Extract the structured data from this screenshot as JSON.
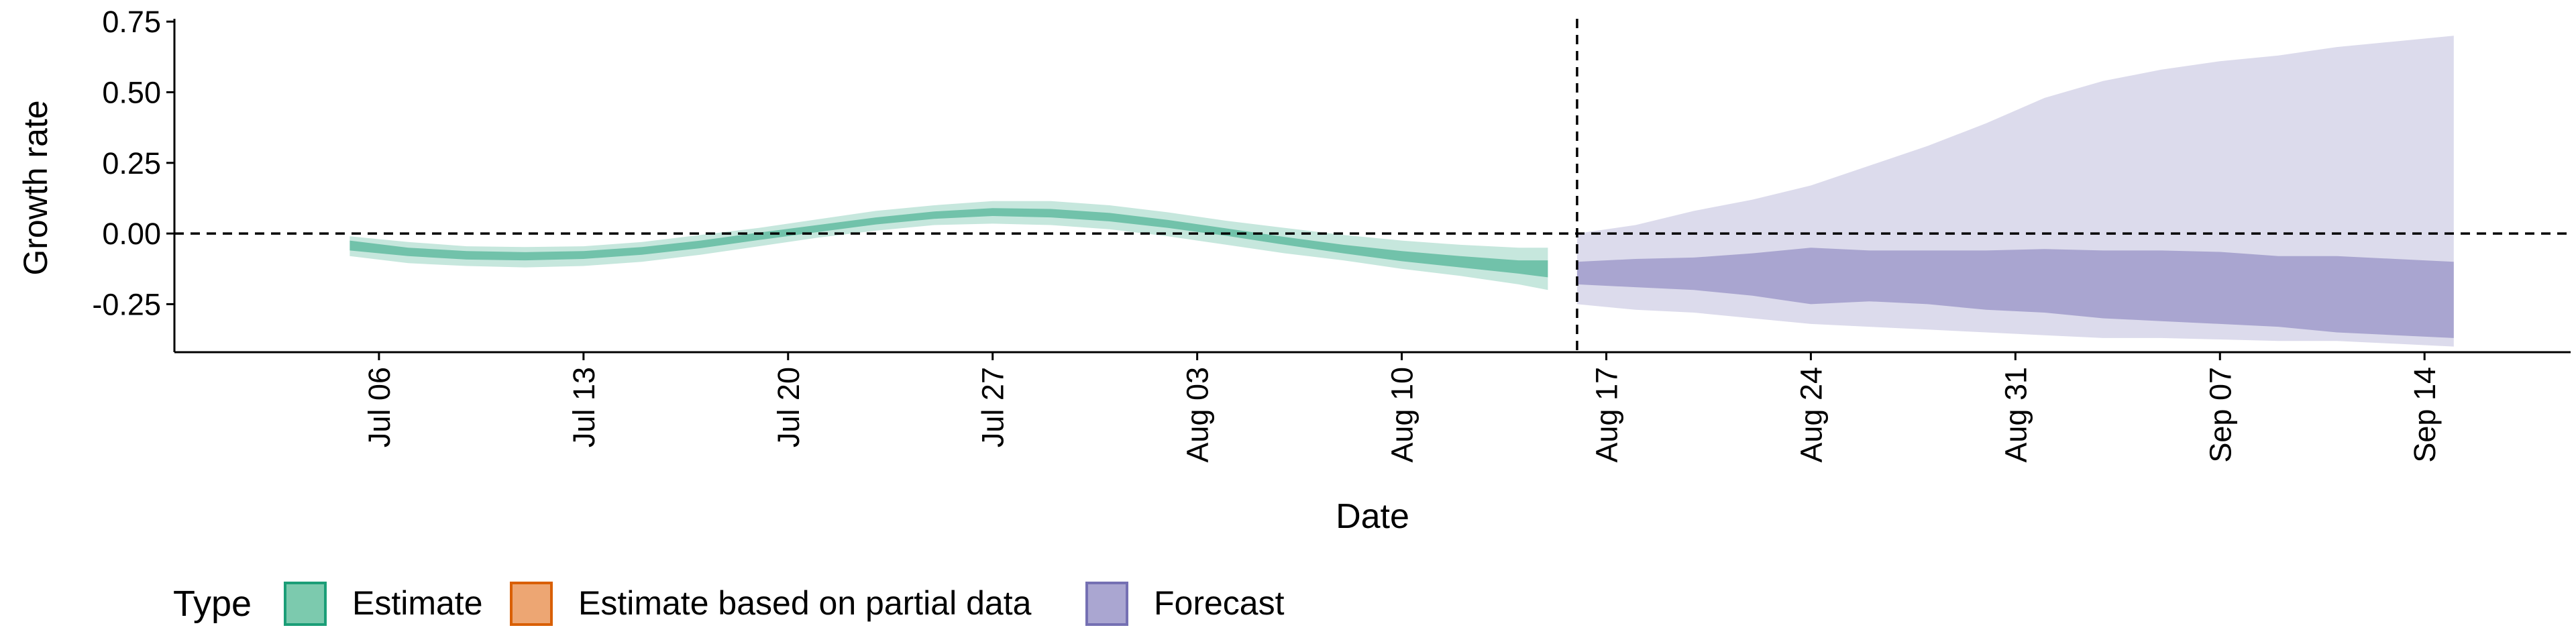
{
  "chart_data": {
    "type": "area",
    "title": "",
    "xlabel": "Date",
    "ylabel": "Growth rate",
    "ylim": [
      -0.42,
      0.76
    ],
    "y_ticks": [
      -0.25,
      0.0,
      0.25,
      0.5,
      0.75
    ],
    "y_tick_labels": [
      "-0.25",
      "0.00",
      "0.25",
      "0.50",
      "0.75"
    ],
    "x_ticks": [
      "2020-07-06",
      "2020-07-13",
      "2020-07-20",
      "2020-07-27",
      "2020-08-03",
      "2020-08-10",
      "2020-08-17",
      "2020-08-24",
      "2020-08-31",
      "2020-09-07",
      "2020-09-14"
    ],
    "x_tick_labels": [
      "Jul 06",
      "Jul 13",
      "Jul 20",
      "Jul 27",
      "Aug 03",
      "Aug 10",
      "Aug 17",
      "Aug 24",
      "Aug 31",
      "Sep 07",
      "Sep 14"
    ],
    "xlim": [
      "2020-06-29",
      "2020-09-19"
    ],
    "grid": false,
    "reference_lines": {
      "horizontal_y": 0.0,
      "vertical_date": "2020-08-16",
      "style": "dashed"
    },
    "legend": {
      "title": "Type",
      "position": "bottom-left",
      "entries": [
        {
          "label": "Estimate",
          "fill": "#7ccaae",
          "stroke": "#1b9e77"
        },
        {
          "label": "Estimate based on partial data",
          "fill": "#eda673",
          "stroke": "#d95f02"
        },
        {
          "label": "Forecast",
          "fill": "#aaa6d1",
          "stroke": "#7570b3"
        }
      ]
    },
    "series": [
      {
        "name": "Estimate",
        "color": "#1b9e77",
        "x": [
          "2020-07-05",
          "2020-07-07",
          "2020-07-09",
          "2020-07-11",
          "2020-07-13",
          "2020-07-15",
          "2020-07-17",
          "2020-07-19",
          "2020-07-21",
          "2020-07-23",
          "2020-07-25",
          "2020-07-27",
          "2020-07-29",
          "2020-07-31",
          "2020-08-02",
          "2020-08-04",
          "2020-08-06",
          "2020-08-08",
          "2020-08-10",
          "2020-08-12",
          "2020-08-14",
          "2020-08-15"
        ],
        "outer_lower": [
          -0.08,
          -0.105,
          -0.115,
          -0.12,
          -0.115,
          -0.1,
          -0.075,
          -0.045,
          -0.015,
          0.01,
          0.03,
          0.035,
          0.03,
          0.015,
          -0.01,
          -0.04,
          -0.07,
          -0.095,
          -0.125,
          -0.15,
          -0.18,
          -0.2
        ],
        "inner_lower": [
          -0.06,
          -0.08,
          -0.092,
          -0.095,
          -0.09,
          -0.075,
          -0.052,
          -0.023,
          0.005,
          0.032,
          0.052,
          0.062,
          0.057,
          0.043,
          0.02,
          -0.008,
          -0.04,
          -0.07,
          -0.098,
          -0.12,
          -0.142,
          -0.155
        ],
        "inner_upper": [
          -0.025,
          -0.05,
          -0.062,
          -0.066,
          -0.062,
          -0.048,
          -0.025,
          0.003,
          0.03,
          0.057,
          0.078,
          0.09,
          0.087,
          0.073,
          0.048,
          0.018,
          -0.012,
          -0.04,
          -0.062,
          -0.08,
          -0.095,
          -0.095
        ],
        "outer_upper": [
          -0.01,
          -0.03,
          -0.045,
          -0.048,
          -0.045,
          -0.03,
          -0.005,
          0.02,
          0.05,
          0.08,
          0.1,
          0.115,
          0.115,
          0.1,
          0.075,
          0.045,
          0.02,
          -0.005,
          -0.025,
          -0.04,
          -0.05,
          -0.05
        ]
      },
      {
        "name": "Forecast",
        "color": "#7570b3",
        "x": [
          "2020-08-16",
          "2020-08-18",
          "2020-08-20",
          "2020-08-22",
          "2020-08-24",
          "2020-08-26",
          "2020-08-28",
          "2020-08-30",
          "2020-09-01",
          "2020-09-03",
          "2020-09-05",
          "2020-09-07",
          "2020-09-09",
          "2020-09-11",
          "2020-09-13",
          "2020-09-15"
        ],
        "outer_lower": [
          -0.25,
          -0.27,
          -0.28,
          -0.3,
          -0.32,
          -0.33,
          -0.34,
          -0.35,
          -0.36,
          -0.37,
          -0.37,
          -0.375,
          -0.38,
          -0.38,
          -0.39,
          -0.4
        ],
        "inner_lower": [
          -0.18,
          -0.19,
          -0.2,
          -0.22,
          -0.25,
          -0.24,
          -0.25,
          -0.27,
          -0.28,
          -0.3,
          -0.31,
          -0.32,
          -0.33,
          -0.35,
          -0.36,
          -0.37
        ],
        "inner_upper": [
          -0.1,
          -0.09,
          -0.085,
          -0.07,
          -0.05,
          -0.06,
          -0.06,
          -0.06,
          -0.055,
          -0.06,
          -0.06,
          -0.065,
          -0.08,
          -0.08,
          -0.09,
          -0.1
        ],
        "outer_upper": [
          0.0,
          0.03,
          0.08,
          0.12,
          0.17,
          0.24,
          0.31,
          0.39,
          0.48,
          0.54,
          0.58,
          0.61,
          0.63,
          0.66,
          0.68,
          0.7
        ]
      }
    ]
  }
}
